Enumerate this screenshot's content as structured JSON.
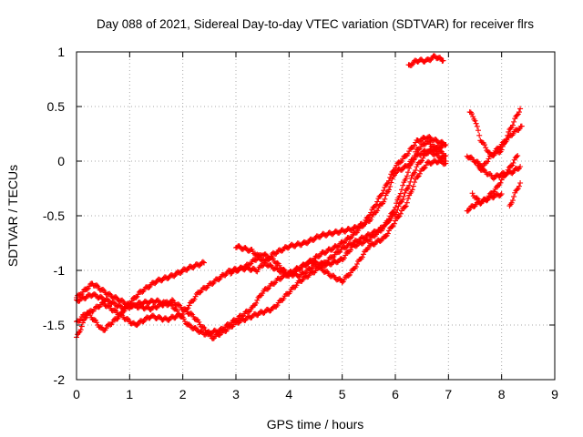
{
  "chart_data": {
    "type": "scatter",
    "title": "Day 088 of 2021, Sidereal Day-to-day VTEC variation (SDTVAR) for receiver flrs",
    "xlabel": "GPS time / hours",
    "ylabel": "SDTVAR / TECUs",
    "xlim": [
      0,
      9
    ],
    "ylim": [
      -2,
      1
    ],
    "xticks": [
      "0",
      "1",
      "2",
      "3",
      "4",
      "5",
      "6",
      "7",
      "8",
      "9"
    ],
    "yticks": [
      "-2",
      "-1.5",
      "-1",
      "-0.5",
      "0",
      "0.5",
      "1"
    ],
    "grid": true,
    "legend": "none",
    "marker": "plus",
    "series_color": "#ff0000",
    "series": [
      {
        "segments": [
          [
            [
              0,
              -1.25
            ],
            [
              0.3,
              -1.12
            ],
            [
              0.6,
              -1.22
            ],
            [
              1.0,
              -1.32
            ],
            [
              1.4,
              -1.35
            ],
            [
              1.8,
              -1.28
            ],
            [
              2.2,
              -1.42
            ],
            [
              2.55,
              -1.62
            ],
            [
              2.8,
              -1.55
            ],
            [
              3.0,
              -1.48
            ],
            [
              3.4,
              -1.4
            ],
            [
              3.7,
              -1.35
            ],
            [
              3.9,
              -1.25
            ],
            [
              4.2,
              -1.1
            ],
            [
              4.5,
              -1.0
            ],
            [
              4.8,
              -0.88
            ],
            [
              5.0,
              -0.8
            ],
            [
              5.4,
              -0.7
            ],
            [
              5.7,
              -0.63
            ],
            [
              6.0,
              -0.48
            ],
            [
              6.2,
              -0.28
            ],
            [
              6.4,
              -0.05
            ],
            [
              6.6,
              0.08
            ],
            [
              6.8,
              0.12
            ],
            [
              6.95,
              0.15
            ]
          ]
        ]
      },
      {
        "segments": [
          [
            [
              0,
              -1.62
            ],
            [
              0.2,
              -1.4
            ],
            [
              0.5,
              -1.3
            ],
            [
              0.8,
              -1.4
            ],
            [
              1.1,
              -1.5
            ],
            [
              1.4,
              -1.42
            ],
            [
              1.7,
              -1.45
            ],
            [
              2.0,
              -1.4
            ],
            [
              2.3,
              -1.2
            ],
            [
              2.6,
              -1.1
            ],
            [
              2.9,
              -1.0
            ],
            [
              3.2,
              -0.98
            ],
            [
              3.4,
              -1.0
            ],
            [
              3.7,
              -0.85
            ],
            [
              4.0,
              -0.78
            ],
            [
              4.3,
              -0.75
            ],
            [
              4.6,
              -0.68
            ],
            [
              4.9,
              -0.65
            ],
            [
              5.2,
              -0.62
            ],
            [
              5.5,
              -0.55
            ],
            [
              5.8,
              -0.35
            ],
            [
              6.0,
              -0.1
            ],
            [
              6.2,
              -0.05
            ],
            [
              6.4,
              0.05
            ],
            [
              6.6,
              0.1
            ],
            [
              6.8,
              0.05
            ],
            [
              6.95,
              0.0
            ]
          ]
        ]
      },
      {
        "segments": [
          [
            [
              0,
              -1.48
            ],
            [
              0.2,
              -1.38
            ],
            [
              0.5,
              -1.55
            ],
            [
              0.8,
              -1.42
            ],
            [
              1.0,
              -1.3
            ],
            [
              1.2,
              -1.2
            ],
            [
              1.5,
              -1.1
            ],
            [
              1.8,
              -1.05
            ],
            [
              2.1,
              -0.98
            ],
            [
              2.4,
              -0.93
            ]
          ],
          [
            [
              2.9,
              -1.02
            ],
            [
              3.2,
              -0.96
            ],
            [
              3.5,
              -0.85
            ],
            [
              3.7,
              -0.9
            ],
            [
              4.0,
              -1.05
            ],
            [
              4.3,
              -0.95
            ],
            [
              4.6,
              -0.85
            ],
            [
              4.9,
              -0.78
            ],
            [
              5.2,
              -0.68
            ],
            [
              5.4,
              -0.58
            ],
            [
              5.6,
              -0.42
            ],
            [
              5.8,
              -0.25
            ],
            [
              6.0,
              -0.05
            ],
            [
              6.2,
              0.05
            ],
            [
              6.4,
              0.18
            ],
            [
              6.6,
              0.22
            ],
            [
              6.8,
              0.18
            ],
            [
              6.95,
              0.15
            ]
          ]
        ]
      },
      {
        "segments": [
          [
            [
              0,
              -1.28
            ],
            [
              0.3,
              -1.22
            ],
            [
              0.6,
              -1.28
            ],
            [
              0.9,
              -1.35
            ],
            [
              1.2,
              -1.3
            ],
            [
              1.5,
              -1.28
            ],
            [
              1.8,
              -1.32
            ],
            [
              2.1,
              -1.5
            ],
            [
              2.4,
              -1.58
            ],
            [
              2.7,
              -1.55
            ],
            [
              3.0,
              -1.45
            ],
            [
              3.3,
              -1.35
            ],
            [
              3.5,
              -1.2
            ],
            [
              3.8,
              -1.08
            ],
            [
              4.1,
              -1.0
            ],
            [
              4.4,
              -0.92
            ],
            [
              4.7,
              -0.95
            ],
            [
              5.0,
              -0.9
            ],
            [
              5.2,
              -0.78
            ],
            [
              5.5,
              -0.72
            ],
            [
              5.8,
              -0.6
            ],
            [
              6.0,
              -0.42
            ],
            [
              6.2,
              -0.15
            ],
            [
              6.4,
              0.1
            ],
            [
              6.6,
              0.18
            ],
            [
              6.8,
              0.1
            ],
            [
              6.95,
              0.05
            ]
          ]
        ]
      },
      {
        "segments": [
          [
            [
              3.0,
              -0.78
            ],
            [
              3.3,
              -0.82
            ],
            [
              3.6,
              -0.95
            ],
            [
              3.9,
              -1.02
            ],
            [
              4.2,
              -1.05
            ],
            [
              4.5,
              -0.95
            ],
            [
              4.8,
              -1.05
            ],
            [
              5.0,
              -1.1
            ],
            [
              5.2,
              -1.0
            ],
            [
              5.5,
              -0.78
            ],
            [
              5.8,
              -0.7
            ],
            [
              6.0,
              -0.55
            ],
            [
              6.2,
              -0.4
            ],
            [
              6.4,
              -0.15
            ],
            [
              6.6,
              -0.02
            ],
            [
              6.8,
              0.0
            ],
            [
              6.95,
              -0.02
            ]
          ]
        ]
      },
      {
        "segments": [
          [
            [
              6.25,
              0.87
            ],
            [
              6.4,
              0.92
            ],
            [
              6.6,
              0.92
            ],
            [
              6.75,
              0.96
            ],
            [
              6.9,
              0.92
            ]
          ],
          [
            [
              7.35,
              -0.45
            ],
            [
              7.5,
              -0.4
            ],
            [
              7.7,
              -0.35
            ],
            [
              7.9,
              -0.25
            ],
            [
              8.1,
              -0.1
            ],
            [
              8.3,
              0.05
            ]
          ],
          [
            [
              7.35,
              0.05
            ],
            [
              7.5,
              0.0
            ],
            [
              7.65,
              -0.05
            ],
            [
              7.8,
              0.05
            ],
            [
              8.0,
              0.15
            ],
            [
              8.2,
              0.25
            ],
            [
              8.38,
              0.32
            ]
          ],
          [
            [
              7.4,
              0.45
            ],
            [
              7.5,
              0.38
            ],
            [
              7.6,
              0.2
            ],
            [
              7.8,
              0.05
            ],
            [
              8.0,
              0.1
            ],
            [
              8.15,
              0.28
            ],
            [
              8.35,
              0.48
            ]
          ],
          [
            [
              7.45,
              -0.3
            ],
            [
              7.6,
              -0.38
            ],
            [
              7.8,
              -0.33
            ],
            [
              8.0,
              -0.3
            ]
          ],
          [
            [
              7.55,
              -0.05
            ],
            [
              7.7,
              -0.1
            ],
            [
              7.85,
              -0.15
            ],
            [
              8.0,
              -0.12
            ],
            [
              8.2,
              -0.1
            ],
            [
              8.35,
              -0.05
            ]
          ],
          [
            [
              8.15,
              -0.42
            ],
            [
              8.25,
              -0.3
            ],
            [
              8.35,
              -0.2
            ]
          ]
        ]
      }
    ]
  }
}
